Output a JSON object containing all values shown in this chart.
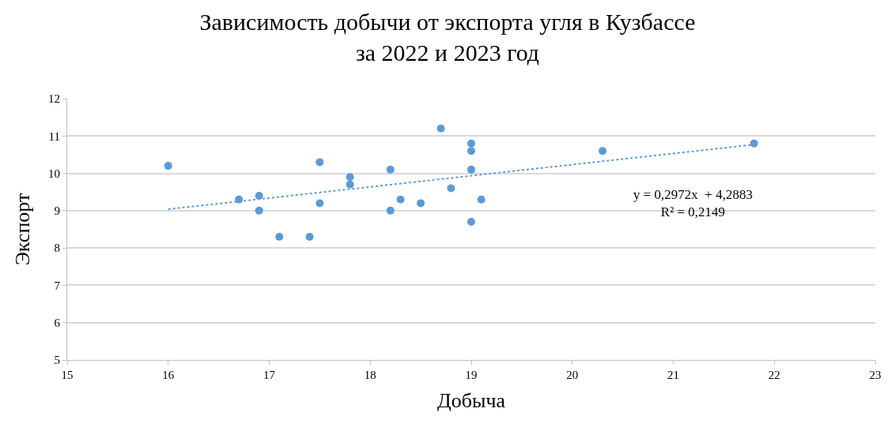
{
  "chart_data": {
    "type": "scatter",
    "title": "Зависимость добычи от экспорта угля в Кузбассе\nза 2022 и 2023 год",
    "xlabel": "Добыча",
    "ylabel": "Экспорт",
    "series": [
      {
        "color": "#5b9bd5",
        "marker": "circle",
        "x": [
          16,
          16.7,
          16.9,
          16.9,
          17.1,
          17.4,
          17.5,
          17.5,
          17.8,
          17.8,
          18.2,
          18.2,
          18.3,
          18.5,
          18.7,
          18.8,
          19,
          19,
          19,
          19,
          19.1,
          20.3,
          21.8
        ],
        "values": [
          10.2,
          9.3,
          9.4,
          9.0,
          8.3,
          8.3,
          10.3,
          9.2,
          9.9,
          9.7,
          10.1,
          9.0,
          9.3,
          9.2,
          11.2,
          9.6,
          10.8,
          10.6,
          10.1,
          8.7,
          9.3,
          10.6,
          10.8
        ]
      },
      {
        "type": "line",
        "color": "#5b9bd5",
        "line_style": "dotted",
        "marker": "none",
        "x": [
          16,
          21.8
        ],
        "values": [
          9.04,
          10.77
        ]
      }
    ],
    "annotations": [
      "y = 0,2972x  + 4,2883\nR² = 0,2149"
    ],
    "xlim": [
      15,
      23
    ],
    "xticks": [
      15,
      16,
      17,
      18,
      19,
      20,
      21,
      22,
      23
    ],
    "ylim": [
      5,
      12
    ],
    "yticks": [
      5,
      6,
      7,
      8,
      9,
      10,
      11,
      12
    ],
    "grid": "y"
  }
}
